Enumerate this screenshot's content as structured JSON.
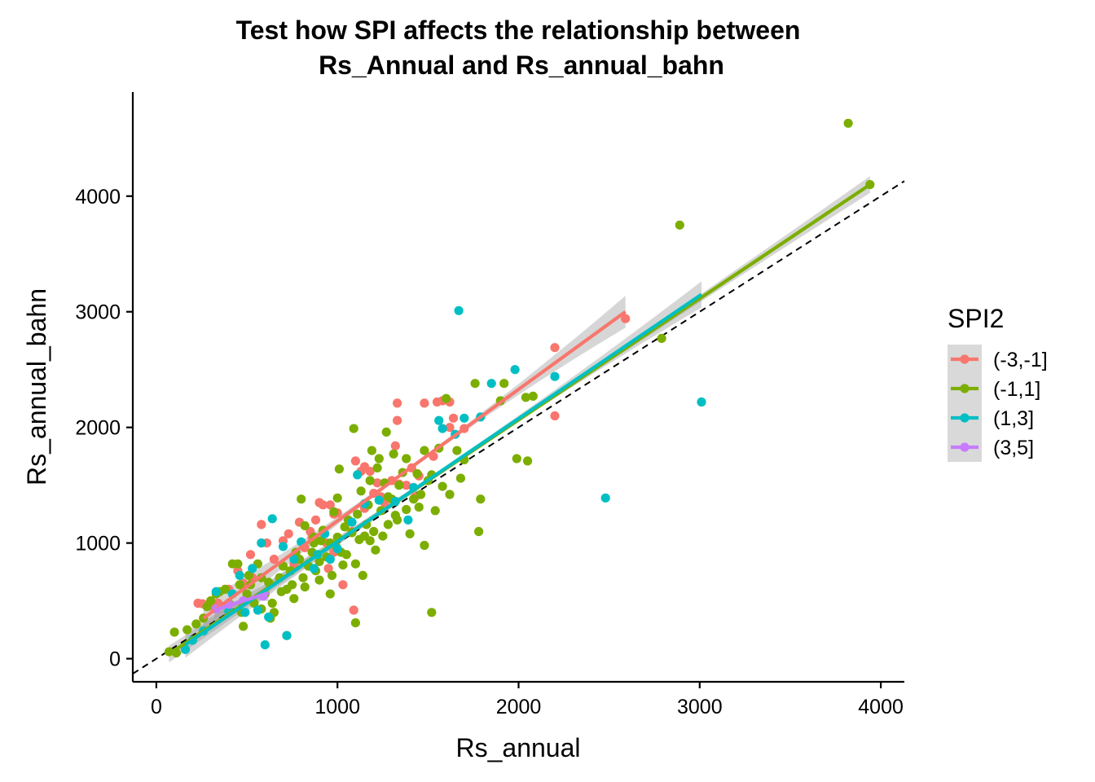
{
  "chart_data": {
    "type": "scatter",
    "title_line1": "Test how SPI affects the relationship between",
    "title_line2": "Rs_Annual and Rs_annual_bahn",
    "xlabel": "Rs_annual",
    "ylabel": "Rs_annual_bahn",
    "xlim": [
      -130,
      4130
    ],
    "ylim": [
      -200,
      4900
    ],
    "xticks": [
      0,
      1000,
      2000,
      3000,
      4000
    ],
    "yticks": [
      0,
      1000,
      2000,
      3000,
      4000
    ],
    "xtick_labels": [
      "0",
      "1000",
      "2000",
      "3000",
      "4000"
    ],
    "ytick_labels": [
      "0",
      "1000",
      "2000",
      "3000",
      "4000"
    ],
    "reference_line": {
      "slope": 1,
      "intercept": 0,
      "style": "dashed",
      "color": "#000000"
    },
    "legend": {
      "title": "SPI2",
      "position": "right",
      "labels": [
        "(-3,-1]",
        "(-1,1]",
        "(1,3]",
        "(3,5]"
      ]
    },
    "series": [
      {
        "name": "(-3,-1]",
        "color": "#F8766D",
        "points": [
          [
            230,
            480
          ],
          [
            255,
            475
          ],
          [
            300,
            455
          ],
          [
            400,
            600
          ],
          [
            450,
            760
          ],
          [
            520,
            900
          ],
          [
            580,
            1160
          ],
          [
            610,
            1000
          ],
          [
            700,
            1020
          ],
          [
            730,
            1080
          ],
          [
            790,
            1180
          ],
          [
            850,
            1100
          ],
          [
            900,
            1350
          ],
          [
            920,
            1330
          ],
          [
            960,
            1330
          ],
          [
            980,
            1250
          ],
          [
            1000,
            1260
          ],
          [
            950,
            780
          ],
          [
            980,
            920
          ],
          [
            1030,
            640
          ],
          [
            1090,
            420
          ],
          [
            1100,
            1710
          ],
          [
            1130,
            1620
          ],
          [
            1150,
            1660
          ],
          [
            1180,
            1620
          ],
          [
            1220,
            1520
          ],
          [
            1240,
            1400
          ],
          [
            1200,
            1430
          ],
          [
            1300,
            1540
          ],
          [
            1320,
            1840
          ],
          [
            1330,
            2060
          ],
          [
            1340,
            1510
          ],
          [
            1330,
            2210
          ],
          [
            1380,
            1500
          ],
          [
            1410,
            1650
          ],
          [
            1450,
            1580
          ],
          [
            1480,
            2210
          ],
          [
            1530,
            1750
          ],
          [
            1550,
            2220
          ],
          [
            1580,
            2230
          ],
          [
            1620,
            2220
          ],
          [
            1620,
            2000
          ],
          [
            1640,
            2080
          ],
          [
            1700,
            1990
          ],
          [
            2200,
            2690
          ],
          [
            2200,
            2100
          ],
          [
            2590,
            2940
          ],
          [
            760,
            820
          ],
          [
            820,
            960
          ],
          [
            860,
            1050
          ],
          [
            880,
            1200
          ],
          [
            940,
            1000
          ],
          [
            1080,
            1100
          ],
          [
            1150,
            1300
          ],
          [
            1260,
            1350
          ],
          [
            1430,
            1400
          ],
          [
            530,
            700
          ],
          [
            480,
            650
          ],
          [
            340,
            480
          ],
          [
            650,
            860
          ]
        ],
        "fit": {
          "x_start": 260,
          "x_end": 2590,
          "y_start": 350,
          "y_end": 3000
        }
      },
      {
        "name": "(-1,1]",
        "color": "#7CAE00",
        "points": [
          [
            70,
            60
          ],
          [
            100,
            230
          ],
          [
            110,
            50
          ],
          [
            170,
            250
          ],
          [
            220,
            300
          ],
          [
            260,
            350
          ],
          [
            280,
            450
          ],
          [
            300,
            500
          ],
          [
            330,
            560
          ],
          [
            350,
            580
          ],
          [
            380,
            600
          ],
          [
            400,
            480
          ],
          [
            420,
            820
          ],
          [
            450,
            820
          ],
          [
            460,
            640
          ],
          [
            470,
            400
          ],
          [
            480,
            280
          ],
          [
            500,
            560
          ],
          [
            510,
            720
          ],
          [
            520,
            640
          ],
          [
            540,
            480
          ],
          [
            560,
            820
          ],
          [
            580,
            700
          ],
          [
            600,
            560
          ],
          [
            620,
            660
          ],
          [
            640,
            480
          ],
          [
            650,
            400
          ],
          [
            680,
            700
          ],
          [
            690,
            580
          ],
          [
            700,
            800
          ],
          [
            720,
            600
          ],
          [
            740,
            760
          ],
          [
            750,
            640
          ],
          [
            760,
            520
          ],
          [
            770,
            920
          ],
          [
            790,
            860
          ],
          [
            800,
            1380
          ],
          [
            810,
            700
          ],
          [
            820,
            620
          ],
          [
            840,
            800
          ],
          [
            860,
            920
          ],
          [
            870,
            1000
          ],
          [
            880,
            760
          ],
          [
            900,
            840
          ],
          [
            910,
            1020
          ],
          [
            920,
            1110
          ],
          [
            940,
            880
          ],
          [
            960,
            560
          ],
          [
            970,
            720
          ],
          [
            980,
            1270
          ],
          [
            990,
            980
          ],
          [
            1000,
            1390
          ],
          [
            1010,
            1640
          ],
          [
            1020,
            920
          ],
          [
            1030,
            810
          ],
          [
            1040,
            1140
          ],
          [
            1060,
            1200
          ],
          [
            1080,
            1090
          ],
          [
            1090,
            1990
          ],
          [
            1100,
            820
          ],
          [
            1110,
            1250
          ],
          [
            1120,
            1030
          ],
          [
            1130,
            1450
          ],
          [
            1140,
            720
          ],
          [
            1150,
            1060
          ],
          [
            1160,
            1160
          ],
          [
            1170,
            1330
          ],
          [
            1180,
            1540
          ],
          [
            1190,
            1800
          ],
          [
            1200,
            1100
          ],
          [
            1210,
            940
          ],
          [
            1220,
            1650
          ],
          [
            1230,
            1730
          ],
          [
            1240,
            1280
          ],
          [
            1250,
            1060
          ],
          [
            1260,
            1520
          ],
          [
            1270,
            1960
          ],
          [
            1280,
            1160
          ],
          [
            1300,
            1380
          ],
          [
            1310,
            1770
          ],
          [
            1320,
            1240
          ],
          [
            1330,
            1200
          ],
          [
            1340,
            1500
          ],
          [
            1360,
            1610
          ],
          [
            1380,
            1730
          ],
          [
            1400,
            1080
          ],
          [
            1420,
            1380
          ],
          [
            1440,
            1600
          ],
          [
            1460,
            1420
          ],
          [
            1480,
            1800
          ],
          [
            1500,
            1540
          ],
          [
            1520,
            1590
          ],
          [
            1540,
            1280
          ],
          [
            1560,
            1820
          ],
          [
            1580,
            1490
          ],
          [
            1600,
            2250
          ],
          [
            1620,
            1420
          ],
          [
            1660,
            1800
          ],
          [
            1680,
            1560
          ],
          [
            1700,
            1720
          ],
          [
            1760,
            2380
          ],
          [
            1780,
            1100
          ],
          [
            1790,
            1380
          ],
          [
            1900,
            2230
          ],
          [
            1920,
            2380
          ],
          [
            1990,
            1730
          ],
          [
            2050,
            1710
          ],
          [
            2040,
            2260
          ],
          [
            2080,
            2270
          ],
          [
            2790,
            2770
          ],
          [
            2890,
            3750
          ],
          [
            3820,
            4630
          ],
          [
            3940,
            4100
          ],
          [
            1520,
            400
          ],
          [
            1480,
            980
          ],
          [
            1100,
            310
          ],
          [
            820,
            1150
          ],
          [
            960,
            1000
          ],
          [
            1050,
            900
          ],
          [
            1180,
            1020
          ],
          [
            1280,
            1400
          ],
          [
            1380,
            1290
          ],
          [
            1450,
            1310
          ],
          [
            580,
            430
          ],
          [
            630,
            350
          ],
          [
            720,
            200
          ],
          [
            900,
            680
          ],
          [
            1000,
            1050
          ],
          [
            870,
            1050
          ]
        ],
        "fit": {
          "x_start": 70,
          "x_end": 3940,
          "y_start": 40,
          "y_end": 4100
        }
      },
      {
        "name": "(1,3]",
        "color": "#00BFC4",
        "points": [
          [
            160,
            80
          ],
          [
            200,
            160
          ],
          [
            260,
            240
          ],
          [
            330,
            580
          ],
          [
            400,
            410
          ],
          [
            420,
            560
          ],
          [
            460,
            720
          ],
          [
            490,
            400
          ],
          [
            530,
            780
          ],
          [
            560,
            420
          ],
          [
            580,
            1000
          ],
          [
            600,
            120
          ],
          [
            620,
            360
          ],
          [
            640,
            1210
          ],
          [
            700,
            970
          ],
          [
            720,
            200
          ],
          [
            760,
            860
          ],
          [
            800,
            1010
          ],
          [
            870,
            780
          ],
          [
            890,
            900
          ],
          [
            930,
            1080
          ],
          [
            960,
            860
          ],
          [
            1000,
            950
          ],
          [
            1080,
            1180
          ],
          [
            1110,
            1590
          ],
          [
            1150,
            1340
          ],
          [
            1230,
            1370
          ],
          [
            1320,
            1360
          ],
          [
            1390,
            1200
          ],
          [
            1420,
            1480
          ],
          [
            1560,
            2060
          ],
          [
            1580,
            1990
          ],
          [
            1650,
            1940
          ],
          [
            1700,
            2080
          ],
          [
            1790,
            2090
          ],
          [
            1850,
            2380
          ],
          [
            1980,
            2500
          ],
          [
            2200,
            2440
          ],
          [
            2480,
            1390
          ],
          [
            3010,
            2220
          ],
          [
            1670,
            3010
          ]
        ],
        "fit": {
          "x_start": 160,
          "x_end": 3010,
          "y_start": 120,
          "y_end": 3150
        }
      },
      {
        "name": "(3,5]",
        "color": "#C77CFF",
        "points": [
          [
            330,
            430
          ],
          [
            400,
            470
          ],
          [
            480,
            500
          ],
          [
            590,
            540
          ]
        ],
        "fit": {
          "x_start": 320,
          "x_end": 620,
          "y_start": 420,
          "y_end": 570
        }
      }
    ]
  }
}
